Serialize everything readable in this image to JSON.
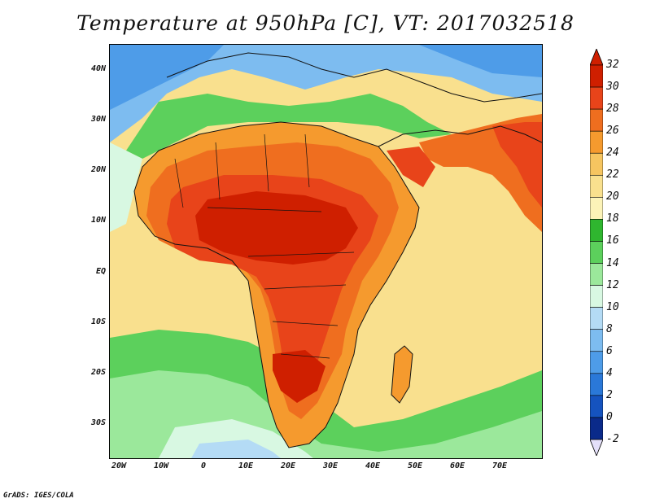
{
  "title": "Temperature at 950hPa [C], VT: 2017032518",
  "footer": "GrADS: IGES/COLA",
  "map": {
    "region": "Africa and surrounding seas",
    "field": "temperature",
    "units": "C",
    "lon_range": [
      -22,
      80
    ],
    "lat_range": [
      -37,
      45
    ],
    "lat_labels": [
      "40N",
      "30N",
      "20N",
      "10N",
      "EQ",
      "10S",
      "20S",
      "30S"
    ],
    "lon_labels": [
      "20W",
      "10W",
      "0",
      "10E",
      "20E",
      "30E",
      "40E",
      "50E",
      "60E",
      "70E"
    ]
  },
  "colorbar": {
    "labels": [
      "32",
      "30",
      "28",
      "26",
      "24",
      "22",
      "20",
      "18",
      "16",
      "14",
      "12",
      "10",
      "8",
      "6",
      "4",
      "2",
      "0",
      "-2"
    ],
    "colors": [
      "#cf1f00",
      "#e8441a",
      "#ef6e1f",
      "#f59a2e",
      "#f6c560",
      "#f9e08e",
      "#fcf3b8",
      "#2fb62f",
      "#5cd05c",
      "#9be89b",
      "#d8f8e2",
      "#b4dbf5",
      "#7dbcf0",
      "#4e9ce8",
      "#2a78d8",
      "#1553bf",
      "#0a2a8a",
      "#e4e0fa"
    ],
    "min_label": "-2",
    "max_label": "32"
  }
}
